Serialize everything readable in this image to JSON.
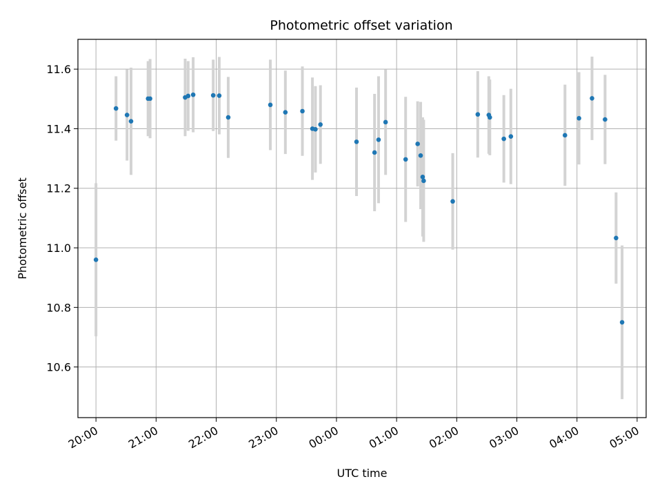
{
  "chart_data": {
    "type": "scatter",
    "title": "Photometric offset variation",
    "xlabel": "UTC time",
    "ylabel": "Photometric offset",
    "x_unit": "UTC time of day (date axis, rolls over past 00:00)",
    "xlim": [
      "19:42",
      "05:09"
    ],
    "ylim": [
      10.43,
      11.7
    ],
    "grid": true,
    "xticks": [
      "20:00",
      "21:00",
      "22:00",
      "23:00",
      "00:00",
      "01:00",
      "02:00",
      "03:00",
      "04:00",
      "05:00"
    ],
    "yticks": [
      "10.6",
      "10.8",
      "11.0",
      "11.2",
      "11.4",
      "11.6"
    ],
    "colors": {
      "points": "#1f77b4",
      "errorbars": "#d3d3d3",
      "grid": "#b0b0b0"
    },
    "series": [
      {
        "points": [
          {
            "x": "20:00",
            "y": 10.96,
            "err": 0.257
          },
          {
            "x": "20:20",
            "y": 11.468,
            "err": 0.108
          },
          {
            "x": "20:31",
            "y": 11.446,
            "err": 0.153
          },
          {
            "x": "20:35",
            "y": 11.425,
            "err": 0.18
          },
          {
            "x": "20:52",
            "y": 11.501,
            "err": 0.126
          },
          {
            "x": "20:54",
            "y": 11.501,
            "err": 0.133
          },
          {
            "x": "21:29",
            "y": 11.505,
            "err": 0.13
          },
          {
            "x": "21:32",
            "y": 11.51,
            "err": 0.117
          },
          {
            "x": "21:37",
            "y": 11.514,
            "err": 0.126
          },
          {
            "x": "21:57",
            "y": 11.512,
            "err": 0.12
          },
          {
            "x": "22:03",
            "y": 11.511,
            "err": 0.13
          },
          {
            "x": "22:12",
            "y": 11.438,
            "err": 0.136
          },
          {
            "x": "22:54",
            "y": 11.48,
            "err": 0.152
          },
          {
            "x": "23:09",
            "y": 11.455,
            "err": 0.14
          },
          {
            "x": "23:26",
            "y": 11.459,
            "err": 0.15
          },
          {
            "x": "23:36",
            "y": 11.4,
            "err": 0.172
          },
          {
            "x": "23:39",
            "y": 11.398,
            "err": 0.145
          },
          {
            "x": "23:44",
            "y": 11.414,
            "err": 0.132
          },
          {
            "x": "00:20",
            "y": 11.356,
            "err": 0.182
          },
          {
            "x": "00:38",
            "y": 11.32,
            "err": 0.197
          },
          {
            "x": "00:42",
            "y": 11.363,
            "err": 0.213
          },
          {
            "x": "00:49",
            "y": 11.422,
            "err": 0.177
          },
          {
            "x": "01:09",
            "y": 11.297,
            "err": 0.21
          },
          {
            "x": "01:21",
            "y": 11.349,
            "err": 0.143
          },
          {
            "x": "01:24",
            "y": 11.31,
            "err": 0.18
          },
          {
            "x": "01:26",
            "y": 11.238,
            "err": 0.2
          },
          {
            "x": "01:27",
            "y": 11.225,
            "err": 0.205
          },
          {
            "x": "01:56",
            "y": 11.156,
            "err": 0.162
          },
          {
            "x": "02:21",
            "y": 11.448,
            "err": 0.145
          },
          {
            "x": "02:32",
            "y": 11.446,
            "err": 0.13
          },
          {
            "x": "02:33",
            "y": 11.438,
            "err": 0.127
          },
          {
            "x": "02:47",
            "y": 11.366,
            "err": 0.147
          },
          {
            "x": "02:54",
            "y": 11.374,
            "err": 0.16
          },
          {
            "x": "03:48",
            "y": 11.378,
            "err": 0.17
          },
          {
            "x": "04:02",
            "y": 11.435,
            "err": 0.155
          },
          {
            "x": "04:15",
            "y": 11.502,
            "err": 0.14
          },
          {
            "x": "04:28",
            "y": 11.431,
            "err": 0.15
          },
          {
            "x": "04:39",
            "y": 11.033,
            "err": 0.153
          },
          {
            "x": "04:45",
            "y": 10.75,
            "err": 0.258
          }
        ]
      }
    ]
  }
}
